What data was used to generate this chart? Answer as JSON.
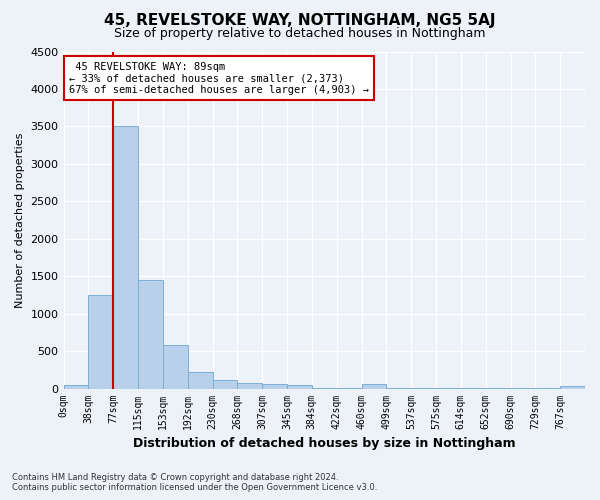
{
  "title": "45, REVELSTOKE WAY, NOTTINGHAM, NG5 5AJ",
  "subtitle": "Size of property relative to detached houses in Nottingham",
  "xlabel": "Distribution of detached houses by size in Nottingham",
  "ylabel": "Number of detached properties",
  "bar_color": "#b8d0ea",
  "bar_edge_color": "#7aafd4",
  "bin_labels": [
    "0sqm",
    "38sqm",
    "77sqm",
    "115sqm",
    "153sqm",
    "192sqm",
    "230sqm",
    "268sqm",
    "307sqm",
    "345sqm",
    "384sqm",
    "422sqm",
    "460sqm",
    "499sqm",
    "537sqm",
    "575sqm",
    "614sqm",
    "652sqm",
    "690sqm",
    "729sqm",
    "767sqm"
  ],
  "bin_values": [
    50,
    1250,
    3500,
    1450,
    580,
    220,
    115,
    80,
    55,
    50,
    5,
    5,
    55,
    5,
    5,
    5,
    5,
    5,
    5,
    5,
    40
  ],
  "ylim": [
    0,
    4500
  ],
  "yticks": [
    0,
    500,
    1000,
    1500,
    2000,
    2500,
    3000,
    3500,
    4000,
    4500
  ],
  "red_line_bin_index": 2,
  "annotation_title": "45 REVELSTOKE WAY: 89sqm",
  "annotation_line1": "← 33% of detached houses are smaller (2,373)",
  "annotation_line2": "67% of semi-detached houses are larger (4,903) →",
  "footer_line1": "Contains HM Land Registry data © Crown copyright and database right 2024.",
  "footer_line2": "Contains public sector information licensed under the Open Government Licence v3.0.",
  "bg_color": "#edf2f9",
  "grid_color": "#ffffff",
  "annotation_box_edge": "#cc0000",
  "title_fontsize": 11,
  "subtitle_fontsize": 9
}
